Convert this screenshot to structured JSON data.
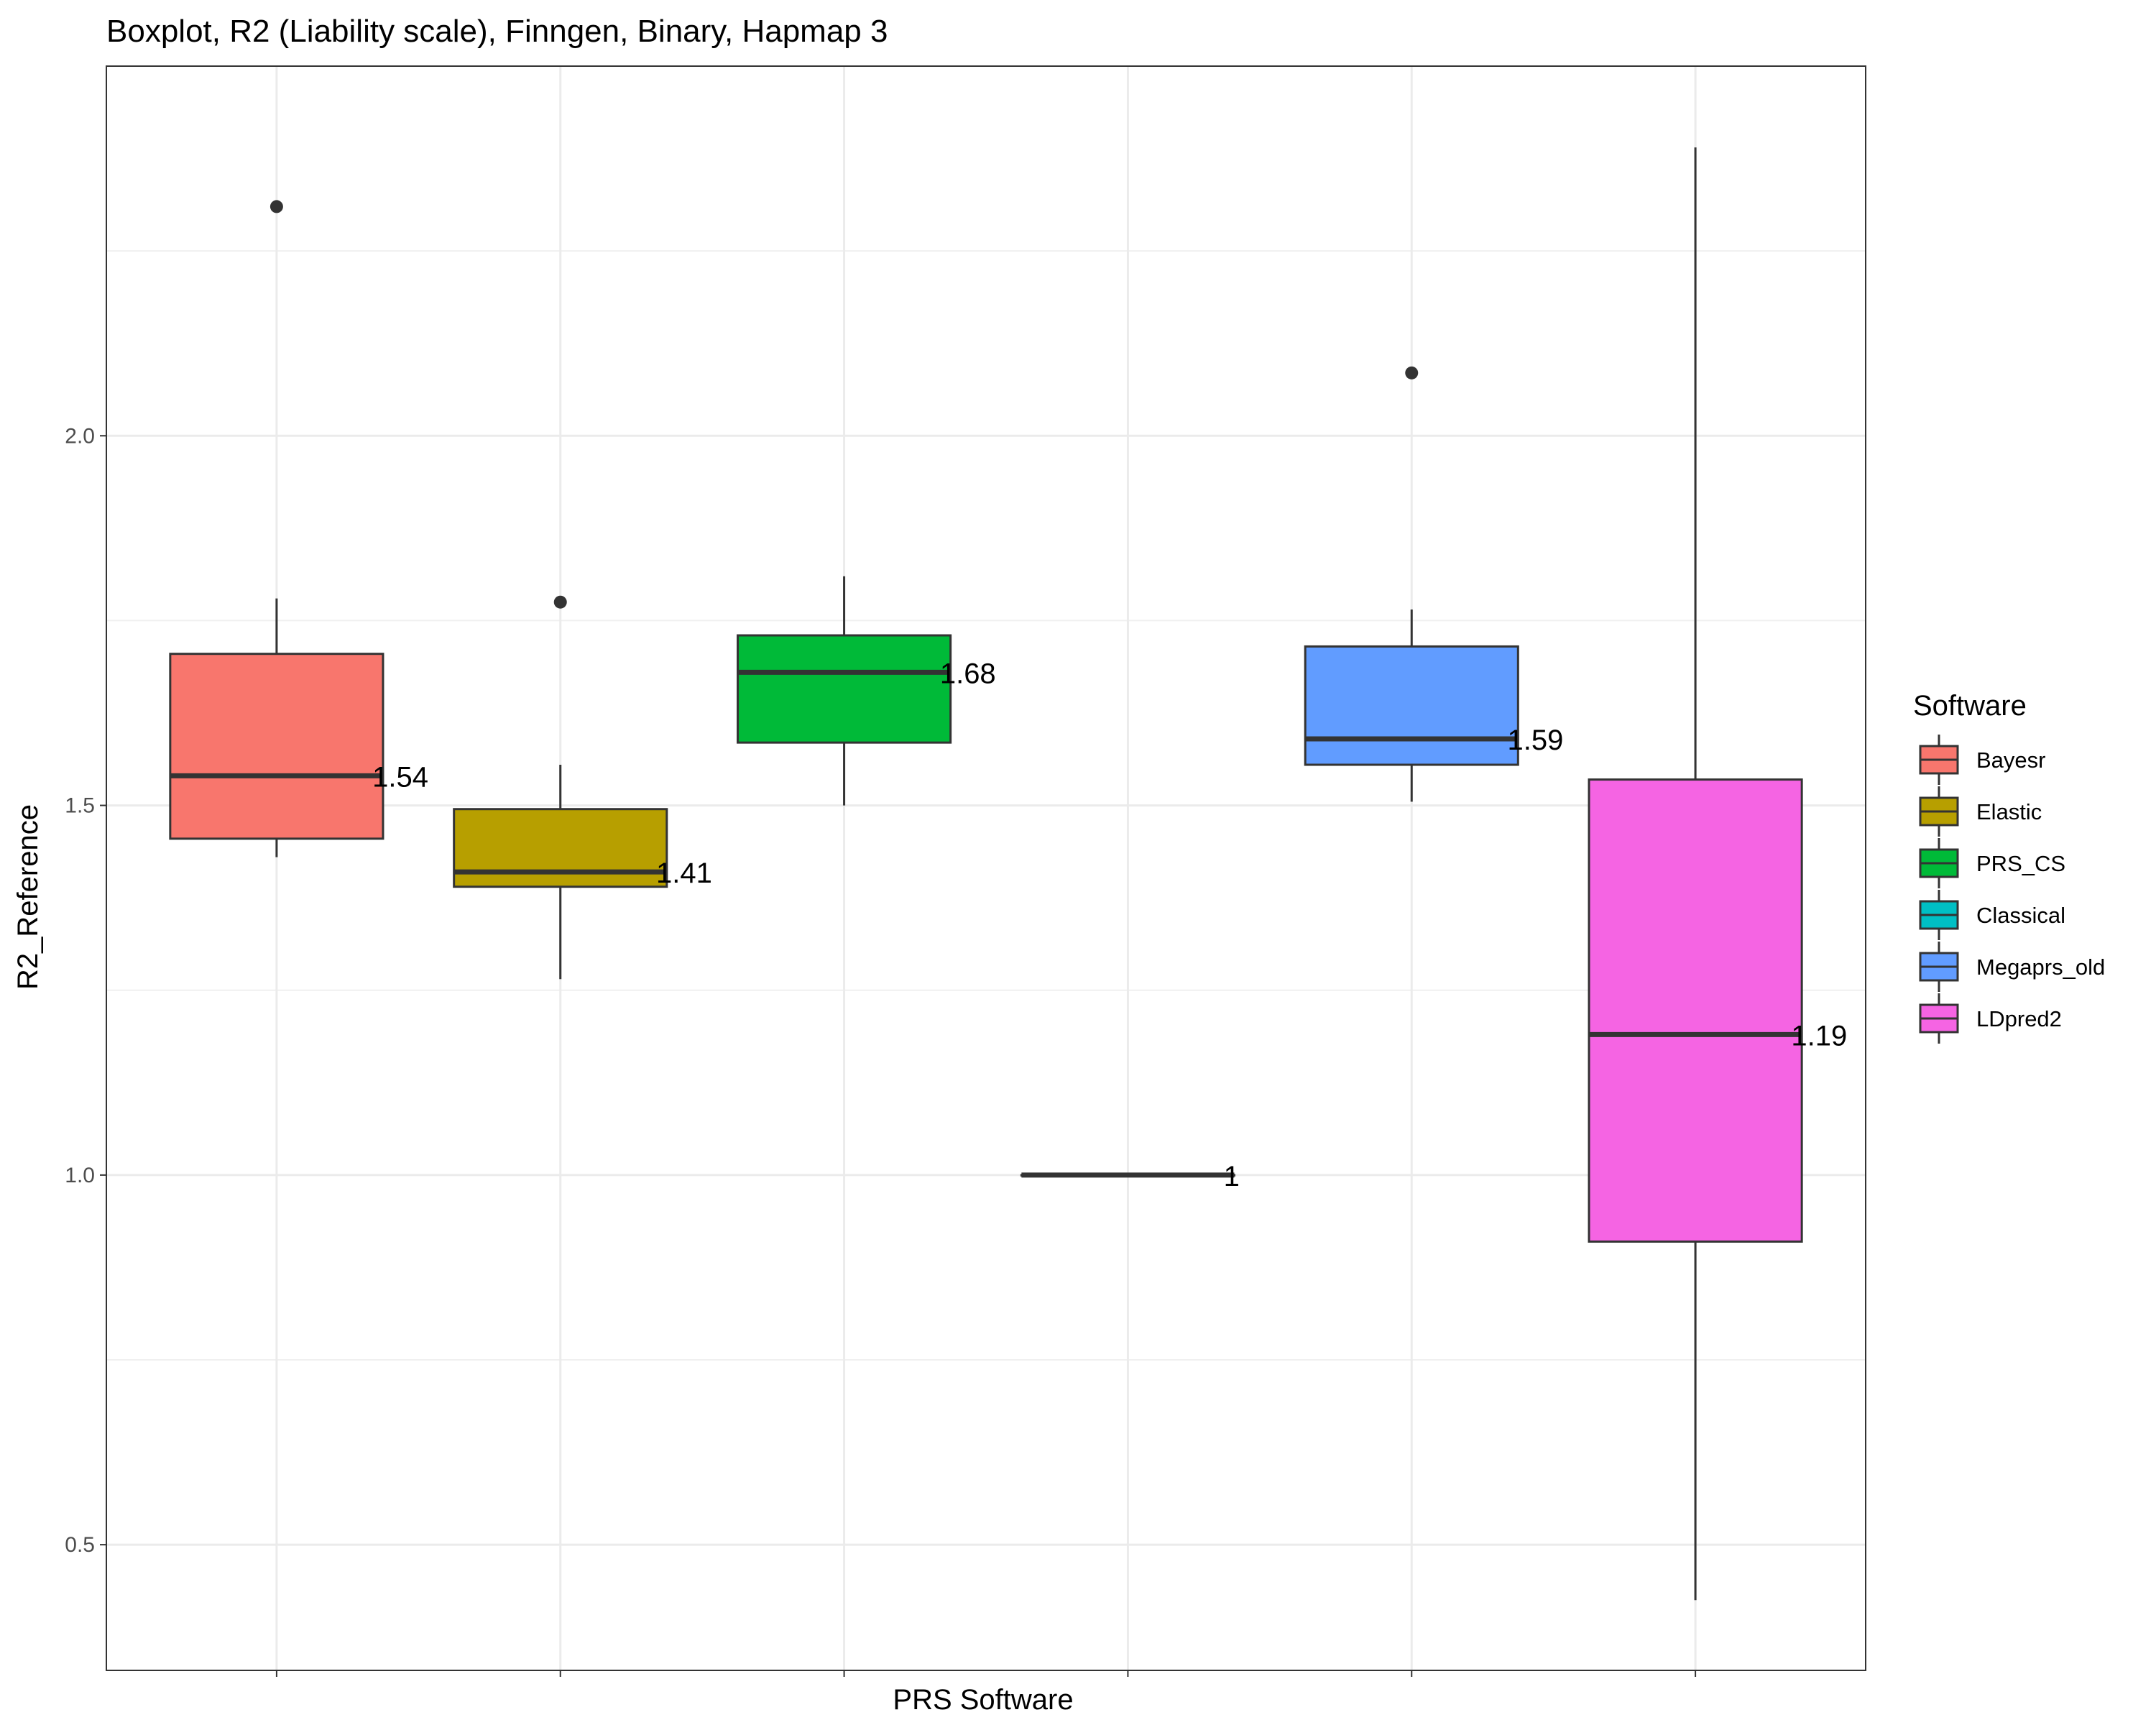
{
  "chart_data": {
    "type": "boxplot",
    "title": "Boxplot, R2 (Liability scale), Finngen, Binary, Hapmap 3",
    "xlabel": "PRS Software",
    "ylabel": "R2_Reference",
    "ylim": [
      0.33,
      2.5
    ],
    "yticks": [
      0.5,
      1.0,
      1.5,
      2.0
    ],
    "ytick_labels": [
      "0.5",
      "1.0",
      "1.5",
      "2.0"
    ],
    "grid": true,
    "legend": {
      "title": "Software",
      "placement": "right"
    },
    "series": [
      {
        "name": "Bayesr",
        "color": "#F8766D",
        "whisker_low": 1.43,
        "q1": 1.455,
        "median": 1.54,
        "q3": 1.705,
        "whisker_high": 1.78,
        "outliers": [
          2.31
        ],
        "median_label": "1.54"
      },
      {
        "name": "Elastic",
        "color": "#B79F00",
        "whisker_low": 1.265,
        "q1": 1.39,
        "median": 1.41,
        "q3": 1.495,
        "whisker_high": 1.555,
        "outliers": [
          1.775
        ],
        "median_label": "1.41"
      },
      {
        "name": "PRS_CS",
        "color": "#00BA38",
        "whisker_low": 1.5,
        "q1": 1.585,
        "median": 1.68,
        "q3": 1.73,
        "whisker_high": 1.81,
        "outliers": [],
        "median_label": "1.68"
      },
      {
        "name": "Classical",
        "color": "#00BFC4",
        "whisker_low": 1.0,
        "q1": 1.0,
        "median": 1.0,
        "q3": 1.0,
        "whisker_high": 1.0,
        "outliers": [],
        "median_label": "1"
      },
      {
        "name": "Megaprs_old",
        "color": "#619CFF",
        "whisker_low": 1.505,
        "q1": 1.555,
        "median": 1.59,
        "q3": 1.715,
        "whisker_high": 1.765,
        "outliers": [
          2.085
        ],
        "median_label": "1.59"
      },
      {
        "name": "LDpred2",
        "color": "#F564E3",
        "whisker_low": 0.425,
        "q1": 0.91,
        "median": 1.19,
        "q3": 1.535,
        "whisker_high": 2.39,
        "outliers": [],
        "median_label": "1.19"
      }
    ]
  }
}
